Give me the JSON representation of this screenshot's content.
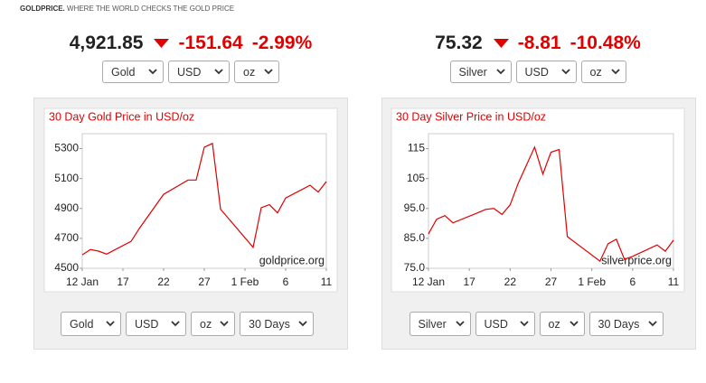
{
  "header": {
    "brand": "GOLDPRICE.",
    "tagline": "WHERE THE WORLD CHECKS THE GOLD PRICE"
  },
  "widgets": [
    {
      "price": "4,921.85",
      "change": "-151.64",
      "change_pct": "-2.99%",
      "selects": [
        "Gold",
        "USD",
        "oz"
      ],
      "bottom_selects": [
        "Gold",
        "USD",
        "oz",
        "30 Days"
      ]
    },
    {
      "price": "75.32",
      "change": "-8.81",
      "change_pct": "-10.48%",
      "selects": [
        "Silver",
        "USD",
        "oz"
      ],
      "bottom_selects": [
        "Silver",
        "USD",
        "oz",
        "30 Days"
      ]
    }
  ],
  "chart_data": [
    {
      "type": "line",
      "title": "30 Day Gold Price in USD/oz",
      "watermark": "goldprice.org",
      "color": "#e00000",
      "x": [
        12,
        13,
        14,
        15,
        18,
        19,
        22,
        25,
        26,
        27,
        28,
        29,
        33,
        34,
        35,
        36,
        37,
        40,
        41,
        42
      ],
      "values": [
        4590,
        4625,
        4615,
        4595,
        4680,
        4765,
        4995,
        5090,
        5090,
        5310,
        5335,
        4895,
        4640,
        4905,
        4925,
        4870,
        4970,
        5055,
        5010,
        5080
      ],
      "xlim": [
        12,
        42
      ],
      "xticks": [
        {
          "value": 12,
          "label": "12 Jan"
        },
        17,
        22,
        27,
        {
          "value": 32,
          "label": "1 Feb"
        },
        {
          "value": 37,
          "label": "6"
        },
        {
          "value": 42,
          "label": "11"
        }
      ],
      "ylim": [
        4500,
        5400
      ],
      "yticks": [
        4500,
        4700,
        4900,
        5100,
        5300
      ],
      "grid": false
    },
    {
      "type": "line",
      "title": "30 Day Silver Price in USD/oz",
      "watermark": "silverprice.org",
      "color": "#e00000",
      "x": [
        12,
        13,
        14,
        15,
        18,
        19,
        20,
        21,
        22,
        23,
        25,
        26,
        27,
        28,
        29,
        33,
        34,
        35,
        36,
        37,
        40,
        41,
        42
      ],
      "values": [
        86.5,
        91.4,
        92.6,
        90.2,
        93.5,
        94.7,
        95,
        93,
        96.2,
        103.5,
        115.5,
        106.5,
        113.8,
        114.7,
        85.6,
        77.4,
        83.2,
        84.7,
        78,
        79,
        82.8,
        80.7,
        84.4
      ],
      "xlim": [
        12,
        42
      ],
      "xticks": [
        {
          "value": 12,
          "label": "12 Jan"
        },
        17,
        22,
        27,
        {
          "value": 32,
          "label": "1 Feb"
        },
        {
          "value": 37,
          "label": "6"
        },
        {
          "value": 42,
          "label": "11"
        }
      ],
      "ylim": [
        75,
        120
      ],
      "yticks": [
        {
          "value": 75,
          "label": "75.0"
        },
        {
          "value": 85,
          "label": "85.0"
        },
        {
          "value": 95,
          "label": "95.0"
        },
        105,
        115
      ],
      "grid": false
    }
  ]
}
